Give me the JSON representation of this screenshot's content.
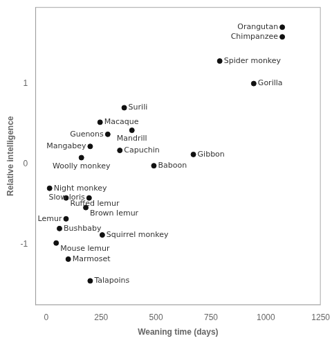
{
  "chart_data": {
    "type": "scatter",
    "x_label": "Weaning time (days)",
    "y_label": "Relative intelligence",
    "x": [
      1075,
      1075,
      790,
      945,
      355,
      245,
      390,
      280,
      200,
      335,
      670,
      160,
      490,
      15,
      90,
      195,
      180,
      90,
      60,
      255,
      45,
      100,
      200
    ],
    "values": [
      1.7,
      1.58,
      1.28,
      1.0,
      0.7,
      0.52,
      0.42,
      0.37,
      0.22,
      0.17,
      0.12,
      0.08,
      -0.02,
      -0.3,
      -0.42,
      -0.42,
      -0.54,
      -0.68,
      -0.8,
      -0.88,
      -0.98,
      -1.18,
      -1.45
    ],
    "annotations": [
      {
        "text": "Orangutan",
        "x": 1075,
        "y": 1.7
      },
      {
        "text": "Chimpanzee",
        "x": 1075,
        "y": 1.58
      },
      {
        "text": "Spider monkey",
        "x": 790,
        "y": 1.28
      },
      {
        "text": "Gorilla",
        "x": 945,
        "y": 1.0
      },
      {
        "text": "Surili",
        "x": 355,
        "y": 0.7
      },
      {
        "text": "Macaque",
        "x": 245,
        "y": 0.52
      },
      {
        "text": "Mandrill",
        "x": 390,
        "y": 0.42
      },
      {
        "text": "Guenons",
        "x": 280,
        "y": 0.37
      },
      {
        "text": "Mangabey",
        "x": 200,
        "y": 0.22
      },
      {
        "text": "Capuchin",
        "x": 335,
        "y": 0.17
      },
      {
        "text": "Gibbon",
        "x": 670,
        "y": 0.12
      },
      {
        "text": "Woolly monkey",
        "x": 160,
        "y": 0.08
      },
      {
        "text": "Baboon",
        "x": 490,
        "y": -0.02
      },
      {
        "text": "Night monkey",
        "x": 15,
        "y": -0.3
      },
      {
        "text": "Ruffed lemur",
        "x": 90,
        "y": -0.42
      },
      {
        "text": "Slow loris",
        "x": 195,
        "y": -0.42
      },
      {
        "text": "Brown lemur",
        "x": 180,
        "y": -0.54
      },
      {
        "text": "Lemur",
        "x": 90,
        "y": -0.68
      },
      {
        "text": "Bushbaby",
        "x": 60,
        "y": -0.8
      },
      {
        "text": "Squirrel monkey",
        "x": 255,
        "y": -0.88
      },
      {
        "text": "Mouse lemur",
        "x": 45,
        "y": -0.98
      },
      {
        "text": "Marmoset",
        "x": 100,
        "y": -1.18
      },
      {
        "text": "Talapoins",
        "x": 200,
        "y": -1.45
      }
    ],
    "color": "#111111",
    "xlim": [
      -50,
      1250
    ],
    "ylim": [
      -1.75,
      1.95
    ],
    "xticks": [
      0,
      250,
      500,
      750,
      1000,
      1250
    ],
    "yticks": [
      -1,
      0,
      1
    ],
    "grid": false
  }
}
